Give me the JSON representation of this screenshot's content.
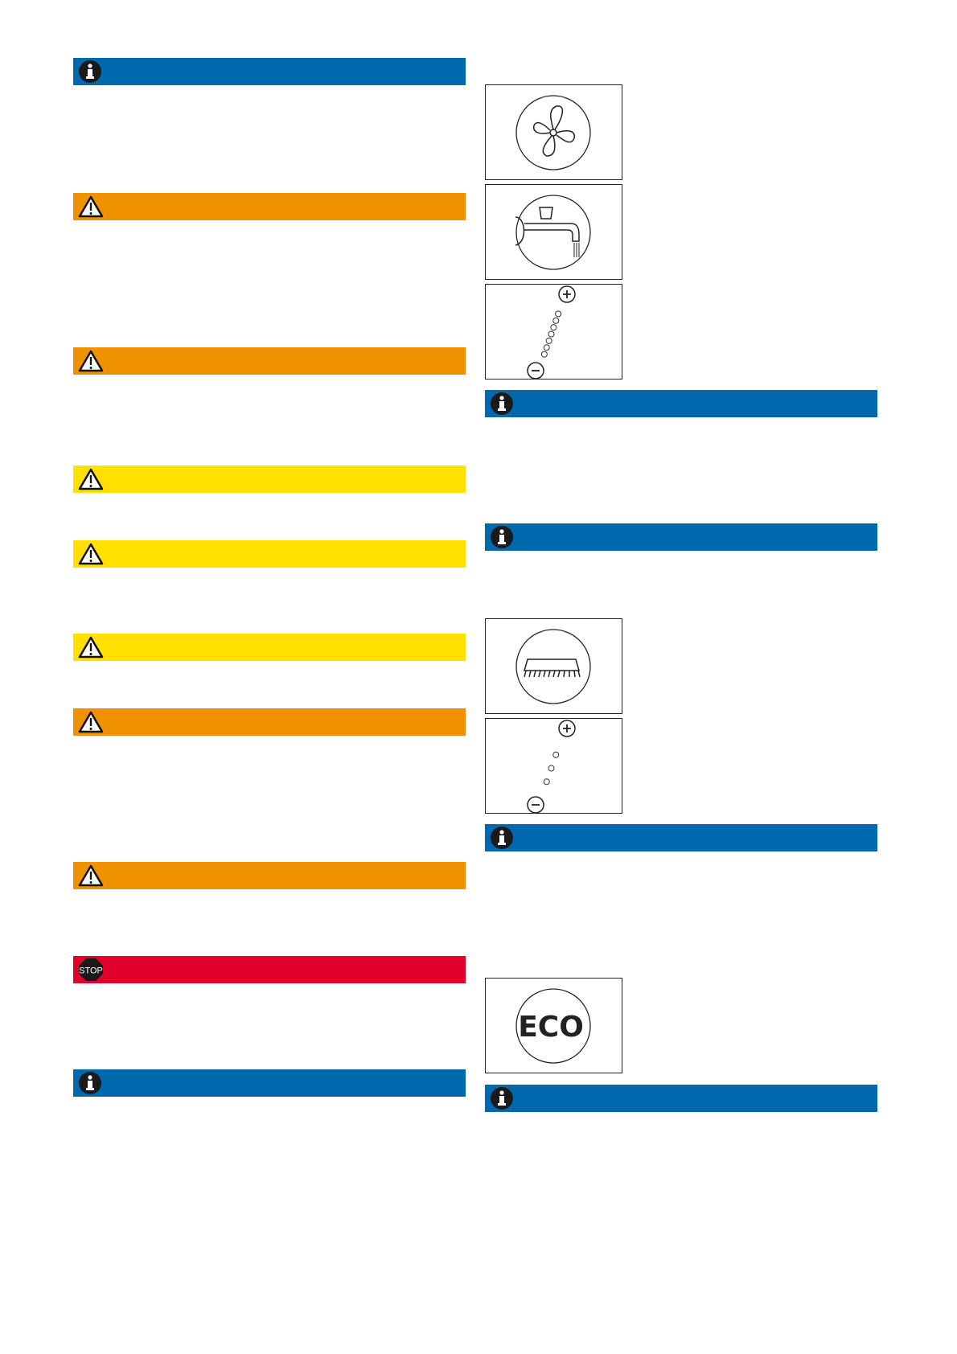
{
  "colors": {
    "info": "#0068ad",
    "warning": "#f09100",
    "caution": "#ffe000",
    "danger": "#e2002a"
  },
  "left_bars": [
    "info",
    "warning",
    "warning",
    "caution",
    "caution",
    "caution",
    "warning",
    "warning",
    "stop",
    "info"
  ],
  "right_bars": [
    "info",
    "info",
    "info",
    "info"
  ],
  "icons": [
    "fan-icon",
    "tap-icon",
    "level-scale-icon",
    "brush-icon",
    "level-scale-icon",
    "eco-icon"
  ],
  "stop_label": "STOP",
  "eco_label": "ECO"
}
